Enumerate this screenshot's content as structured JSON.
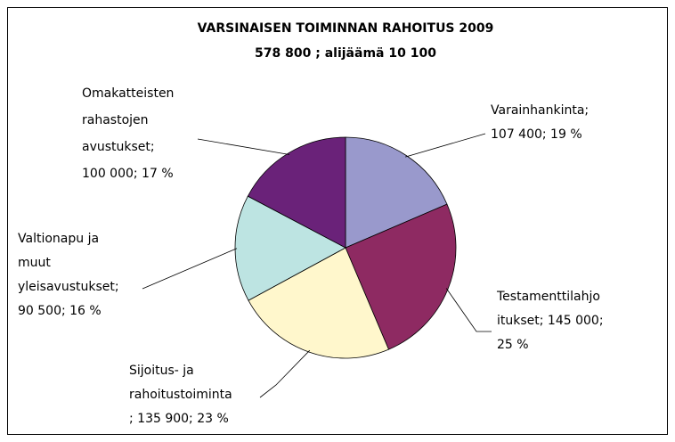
{
  "chart_data": {
    "type": "pie",
    "title": "VARSINAISEN TOIMINNAN RAHOITUS 2009",
    "subtitle": "578 800 ; alijäämä 10 100",
    "values": [
      107400,
      145000,
      135900,
      90500,
      100000
    ],
    "colors": [
      "#9999cc",
      "#8e2a62",
      "#fff7cc",
      "#bde4e2",
      "#6a2279"
    ],
    "labels": [
      [
        "Varainhankinta;",
        "107 400; 19 %"
      ],
      [
        "Testamenttilahjo",
        "itukset; 145 000;",
        "25 %"
      ],
      [
        "Sijoitus- ja",
        "rahoitustoiminta",
        "; 135 900; 23 %"
      ],
      [
        "Valtionapu ja",
        "muut",
        "yleisavustukset;",
        "90 500; 16 %"
      ],
      [
        "Omakatteisten",
        "rahastojen",
        "avustukset;",
        "100 000; 17 %"
      ]
    ]
  }
}
